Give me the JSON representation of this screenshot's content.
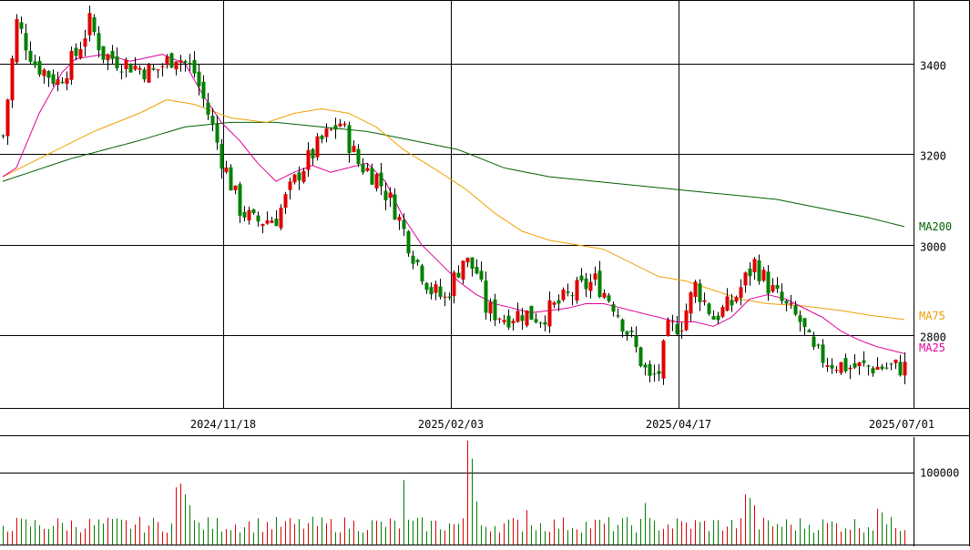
{
  "chart_data": [
    {
      "type": "candlestick",
      "ylim": [
        2640,
        3540
      ],
      "y_ticks": [
        "3400",
        "3200",
        "3000",
        "2800"
      ],
      "x_tick_labels": [
        "2024/11/18",
        "2025/02/03",
        "2025/04/17",
        "2025/07/01"
      ],
      "grid": true,
      "colors": {
        "up": "#e00000",
        "down": "#008000",
        "ma25": "#e0009a",
        "ma75": "#f0a000",
        "ma200": "#006000",
        "grid": "#000000"
      },
      "ma_labels": {
        "ma200": "MA200",
        "ma75": "MA75",
        "ma25": "MA25"
      },
      "anchors": [
        [
          0,
          3240
        ],
        [
          3,
          3490
        ],
        [
          7,
          3400
        ],
        [
          12,
          3360
        ],
        [
          16,
          3420
        ],
        [
          19,
          3490
        ],
        [
          22,
          3420
        ],
        [
          27,
          3400
        ],
        [
          33,
          3380
        ],
        [
          38,
          3420
        ],
        [
          42,
          3380
        ],
        [
          46,
          3260
        ],
        [
          48,
          3190
        ],
        [
          52,
          3080
        ],
        [
          55,
          3050
        ],
        [
          60,
          3060
        ],
        [
          65,
          3160
        ],
        [
          70,
          3230
        ],
        [
          74,
          3270
        ],
        [
          78,
          3180
        ],
        [
          82,
          3150
        ],
        [
          86,
          3080
        ],
        [
          90,
          2980
        ],
        [
          94,
          2900
        ],
        [
          97,
          2880
        ],
        [
          101,
          2970
        ],
        [
          104,
          2940
        ],
        [
          106,
          2860
        ],
        [
          110,
          2840
        ],
        [
          114,
          2850
        ],
        [
          118,
          2840
        ],
        [
          122,
          2870
        ],
        [
          126,
          2900
        ],
        [
          130,
          2920
        ],
        [
          134,
          2870
        ],
        [
          138,
          2790
        ],
        [
          142,
          2700
        ],
        [
          144,
          2720
        ],
        [
          146,
          2810
        ],
        [
          149,
          2830
        ],
        [
          152,
          2910
        ],
        [
          156,
          2840
        ],
        [
          160,
          2870
        ],
        [
          165,
          2960
        ],
        [
          168,
          2910
        ],
        [
          172,
          2860
        ],
        [
          175,
          2830
        ],
        [
          178,
          2760
        ],
        [
          182,
          2740
        ],
        [
          186,
          2730
        ],
        [
          190,
          2730
        ],
        [
          194,
          2730
        ],
        [
          198,
          2730
        ]
      ],
      "ma25": [
        [
          0,
          3150
        ],
        [
          3,
          3170
        ],
        [
          8,
          3290
        ],
        [
          13,
          3380
        ],
        [
          16,
          3410
        ],
        [
          22,
          3420
        ],
        [
          28,
          3405
        ],
        [
          35,
          3420
        ],
        [
          40,
          3400
        ],
        [
          44,
          3330
        ],
        [
          48,
          3270
        ],
        [
          52,
          3230
        ],
        [
          56,
          3180
        ],
        [
          60,
          3140
        ],
        [
          64,
          3160
        ],
        [
          68,
          3175
        ],
        [
          72,
          3160
        ],
        [
          76,
          3170
        ],
        [
          80,
          3180
        ],
        [
          84,
          3140
        ],
        [
          88,
          3060
        ],
        [
          92,
          3000
        ],
        [
          96,
          2960
        ],
        [
          100,
          2920
        ],
        [
          104,
          2890
        ],
        [
          108,
          2870
        ],
        [
          112,
          2860
        ],
        [
          116,
          2850
        ],
        [
          120,
          2855
        ],
        [
          124,
          2860
        ],
        [
          128,
          2870
        ],
        [
          132,
          2870
        ],
        [
          136,
          2860
        ],
        [
          140,
          2850
        ],
        [
          144,
          2840
        ],
        [
          148,
          2830
        ],
        [
          152,
          2830
        ],
        [
          156,
          2820
        ],
        [
          160,
          2840
        ],
        [
          164,
          2880
        ],
        [
          168,
          2890
        ],
        [
          172,
          2880
        ],
        [
          176,
          2860
        ],
        [
          180,
          2840
        ],
        [
          184,
          2810
        ],
        [
          188,
          2790
        ],
        [
          192,
          2775
        ],
        [
          196,
          2765
        ],
        [
          198,
          2760
        ]
      ],
      "ma75": [
        [
          0,
          3150
        ],
        [
          10,
          3200
        ],
        [
          20,
          3250
        ],
        [
          30,
          3290
        ],
        [
          36,
          3320
        ],
        [
          42,
          3310
        ],
        [
          50,
          3280
        ],
        [
          58,
          3270
        ],
        [
          64,
          3290
        ],
        [
          70,
          3300
        ],
        [
          76,
          3290
        ],
        [
          82,
          3260
        ],
        [
          88,
          3210
        ],
        [
          96,
          3160
        ],
        [
          102,
          3120
        ],
        [
          108,
          3070
        ],
        [
          114,
          3030
        ],
        [
          120,
          3010
        ],
        [
          126,
          3000
        ],
        [
          132,
          2990
        ],
        [
          138,
          2960
        ],
        [
          144,
          2930
        ],
        [
          150,
          2920
        ],
        [
          156,
          2900
        ],
        [
          162,
          2880
        ],
        [
          168,
          2870
        ],
        [
          176,
          2865
        ],
        [
          184,
          2855
        ],
        [
          190,
          2845
        ],
        [
          198,
          2835
        ]
      ],
      "ma200": [
        [
          0,
          3140
        ],
        [
          15,
          3190
        ],
        [
          30,
          3230
        ],
        [
          40,
          3260
        ],
        [
          50,
          3270
        ],
        [
          60,
          3270
        ],
        [
          70,
          3260
        ],
        [
          80,
          3250
        ],
        [
          90,
          3230
        ],
        [
          100,
          3210
        ],
        [
          110,
          3170
        ],
        [
          120,
          3150
        ],
        [
          130,
          3140
        ],
        [
          140,
          3130
        ],
        [
          150,
          3120
        ],
        [
          160,
          3110
        ],
        [
          170,
          3100
        ],
        [
          180,
          3080
        ],
        [
          190,
          3060
        ],
        [
          198,
          3040
        ]
      ]
    },
    {
      "type": "bar",
      "ylim": [
        0,
        150000
      ],
      "y_ticks": [
        "100000"
      ],
      "grid": true,
      "colors": {
        "up": "#e00000",
        "down": "#008000"
      },
      "volume_base": 30000,
      "volume_spikes": [
        [
          38,
          80000
        ],
        [
          39,
          85000
        ],
        [
          40,
          70000
        ],
        [
          41,
          55000
        ],
        [
          88,
          90000
        ],
        [
          102,
          145000
        ],
        [
          103,
          120000
        ],
        [
          104,
          60000
        ],
        [
          115,
          48000
        ],
        [
          141,
          58000
        ],
        [
          163,
          70000
        ],
        [
          164,
          65000
        ],
        [
          165,
          55000
        ],
        [
          192,
          50000
        ],
        [
          193,
          45000
        ]
      ]
    }
  ]
}
